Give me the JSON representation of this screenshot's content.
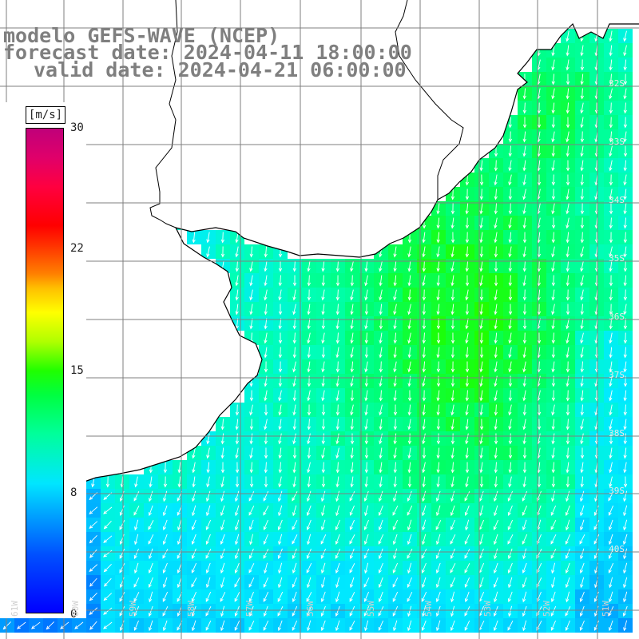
{
  "title": {
    "line1": "modelo GEFS-WAVE (NCEP)",
    "line2": "forecast date: 2024-04-11 18:00:00",
    "line3": "valid date: 2024-04-21 06:00:00"
  },
  "colorbar": {
    "unit": "[m/s]",
    "ticks": [
      "30",
      "22",
      "15",
      "8",
      "0"
    ],
    "tick_values": [
      30,
      22,
      15,
      8,
      0
    ],
    "min": 0,
    "max": 30,
    "colors": [
      "#0000ff",
      "#00a0ff",
      "#00e6ff",
      "#00ff9a",
      "#20ff00",
      "#ffff00",
      "#ff8000",
      "#ff0000",
      "#c0007a"
    ]
  },
  "map": {
    "variable": "wind speed",
    "land_color": "#ffffff",
    "coastline_color": "#000000",
    "grid_color": "#7f7f7f",
    "arrow_color": "#ffffff",
    "wind_direction": "from north-northeast",
    "lon_labels": [
      "61W",
      "60W",
      "59W",
      "58W",
      "57W",
      "56W",
      "55W",
      "54W",
      "53W",
      "52W",
      "51W"
    ],
    "lat_labels": [
      "32S",
      "33S",
      "34S",
      "35S",
      "36S",
      "37S",
      "38S",
      "39S",
      "40S"
    ]
  }
}
